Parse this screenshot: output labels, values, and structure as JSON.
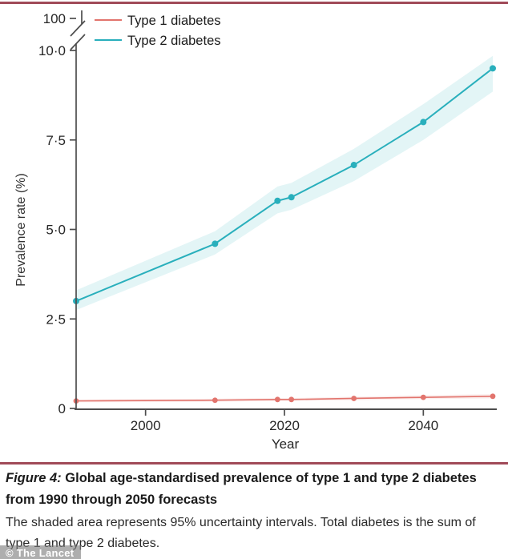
{
  "accent": {
    "rule_color": "#a04a58",
    "axis_color": "#4d4d4d",
    "type1_color": "#e2746d",
    "type2_color": "#29afbc",
    "type2_band_color": "#29afbc",
    "type1_band_color": "#e2746d"
  },
  "legend": {
    "items": [
      {
        "label": "Type 1 diabetes",
        "color": "#e2746d"
      },
      {
        "label": "Type 2 diabetes",
        "color": "#29afbc"
      }
    ]
  },
  "chart_data": {
    "type": "line",
    "title": "",
    "xlabel": "Year",
    "ylabel": "Prevalence rate (%)",
    "x": [
      1990,
      2010,
      2019,
      2021,
      2030,
      2040,
      2050
    ],
    "series": [
      {
        "name": "Type 1 diabetes",
        "color": "#e2746d",
        "values": [
          0.21,
          0.23,
          0.25,
          0.25,
          0.28,
          0.31,
          0.34
        ],
        "lower": [
          0.17,
          0.19,
          0.21,
          0.21,
          0.23,
          0.26,
          0.28
        ],
        "upper": [
          0.25,
          0.27,
          0.29,
          0.29,
          0.33,
          0.37,
          0.4
        ]
      },
      {
        "name": "Type 2 diabetes",
        "color": "#29afbc",
        "values": [
          3.0,
          4.6,
          5.8,
          5.9,
          6.8,
          8.0,
          9.5
        ],
        "lower": [
          2.75,
          4.3,
          5.45,
          5.55,
          6.35,
          7.5,
          8.85
        ],
        "upper": [
          3.3,
          4.95,
          6.2,
          6.3,
          7.25,
          8.5,
          9.85
        ]
      }
    ],
    "x_ticks": [
      {
        "v": 2000,
        "label": "2000"
      },
      {
        "v": 2020,
        "label": "2020"
      },
      {
        "v": 2040,
        "label": "2040"
      }
    ],
    "y_ticks": [
      {
        "v": 0,
        "label": "0"
      },
      {
        "v": 2.5,
        "label": "2·5"
      },
      {
        "v": 5.0,
        "label": "5·0"
      },
      {
        "v": 7.5,
        "label": "7·5"
      },
      {
        "v": 10.0,
        "label": "10·0"
      }
    ],
    "y_axis_break_label": "100",
    "xlim": [
      1990,
      2050
    ],
    "ylim": [
      0,
      10.5
    ],
    "grid": false,
    "legend_position": "top-left",
    "band_meaning": "95% uncertainty intervals"
  },
  "caption": {
    "figure_label": "Figure 4:",
    "title": "Global age-standardised prevalence of type 1 and type 2 diabetes from 1990 through 2050 forecasts",
    "body": "The shaded area represents 95% uncertainty intervals. Total diabetes is the sum of type 1 and type 2 diabetes."
  },
  "watermark": "© The Lancet"
}
